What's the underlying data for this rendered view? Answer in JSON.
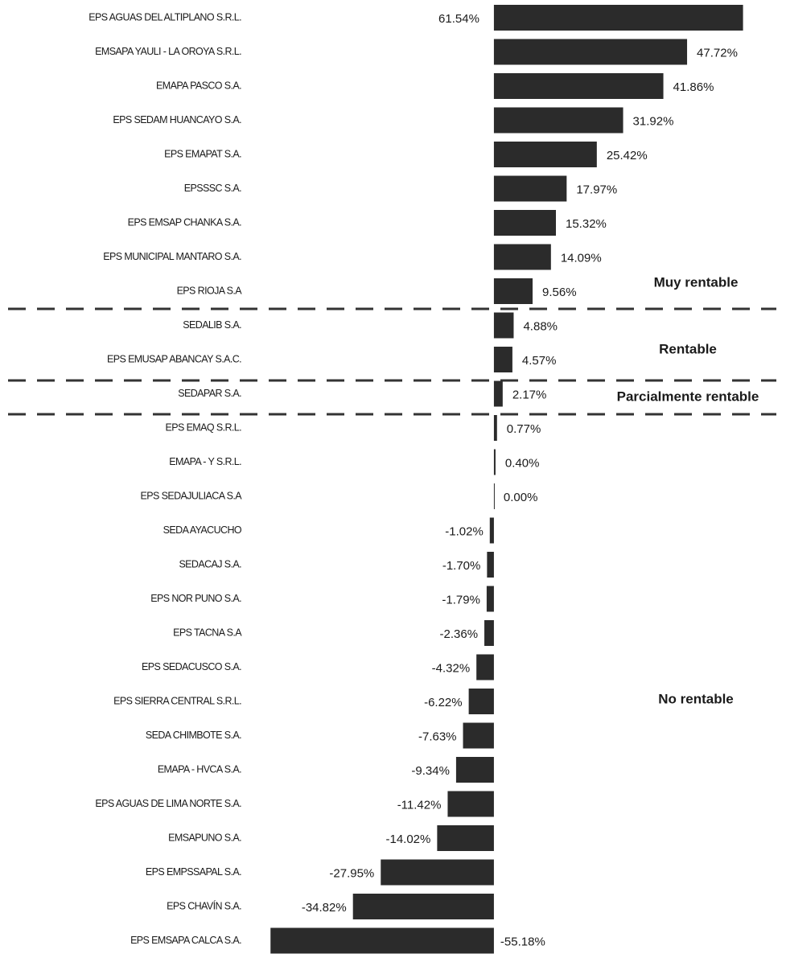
{
  "chart_data": {
    "type": "barh",
    "categories": [
      "EPS AGUAS DEL ALTIPLANO S.R.L.",
      "EMSAPA YAULI - LA OROYA S.R.L.",
      "EMAPA PASCO S.A.",
      "EPS SEDAM HUANCAYO S.A.",
      "EPS EMAPAT S.A.",
      "EPSSSC S.A.",
      "EPS EMSAP CHANKA S.A.",
      "EPS MUNICIPAL MANTARO S.A.",
      "EPS RIOJA S.A",
      "SEDALIB S.A.",
      "EPS EMUSAP ABANCAY S.A.C.",
      "SEDAPAR S.A.",
      "EPS EMAQ S.R.L.",
      "EMAPA - Y S.R.L.",
      "EPS SEDAJULIACA S.A",
      "SEDA AYACUCHO",
      "SEDACAJ S.A.",
      "EPS NOR PUNO S.A.",
      "EPS TACNA S.A",
      "EPS SEDACUSCO S.A.",
      "EPS SIERRA CENTRAL S.R.L.",
      "SEDA CHIMBOTE S.A.",
      "EMAPA - HVCA S.A.",
      "EPS AGUAS DE LIMA NORTE S.A.",
      "EMSAPUNO S.A.",
      "EPS EMPSSAPAL S.A.",
      "EPS CHAVÍN S.A.",
      "EPS EMSAPA CALCA S.A."
    ],
    "values": [
      61.54,
      47.72,
      41.86,
      31.92,
      25.42,
      17.97,
      15.32,
      14.09,
      9.56,
      4.88,
      4.57,
      2.17,
      0.77,
      0.4,
      0.0,
      -1.02,
      -1.7,
      -1.79,
      -2.36,
      -4.32,
      -6.22,
      -7.63,
      -9.34,
      -11.42,
      -14.02,
      -27.95,
      -34.82,
      -55.18
    ],
    "value_labels": [
      "61.54%",
      "47.72%",
      "41.86%",
      "31.92%",
      "25.42%",
      "17.97%",
      "15.32%",
      "14.09%",
      "9.56%",
      "4.88%",
      "4.57%",
      "2.17%",
      "0.77%",
      "0.40%",
      "0.00%",
      "-1.02%",
      "-1.70%",
      "-1.79%",
      "-2.36%",
      "-4.32%",
      "-6.22%",
      "-7.63%",
      "-9.34%",
      "-11.42%",
      "-14.02%",
      "-27.95%",
      "-34.82%",
      "-55.18%"
    ],
    "color": "#2b2b2b",
    "xlim": [
      -60,
      65
    ],
    "annotations": [
      "Muy rentable",
      "Rentable",
      "Parcialmente rentable",
      "No rentable"
    ]
  }
}
